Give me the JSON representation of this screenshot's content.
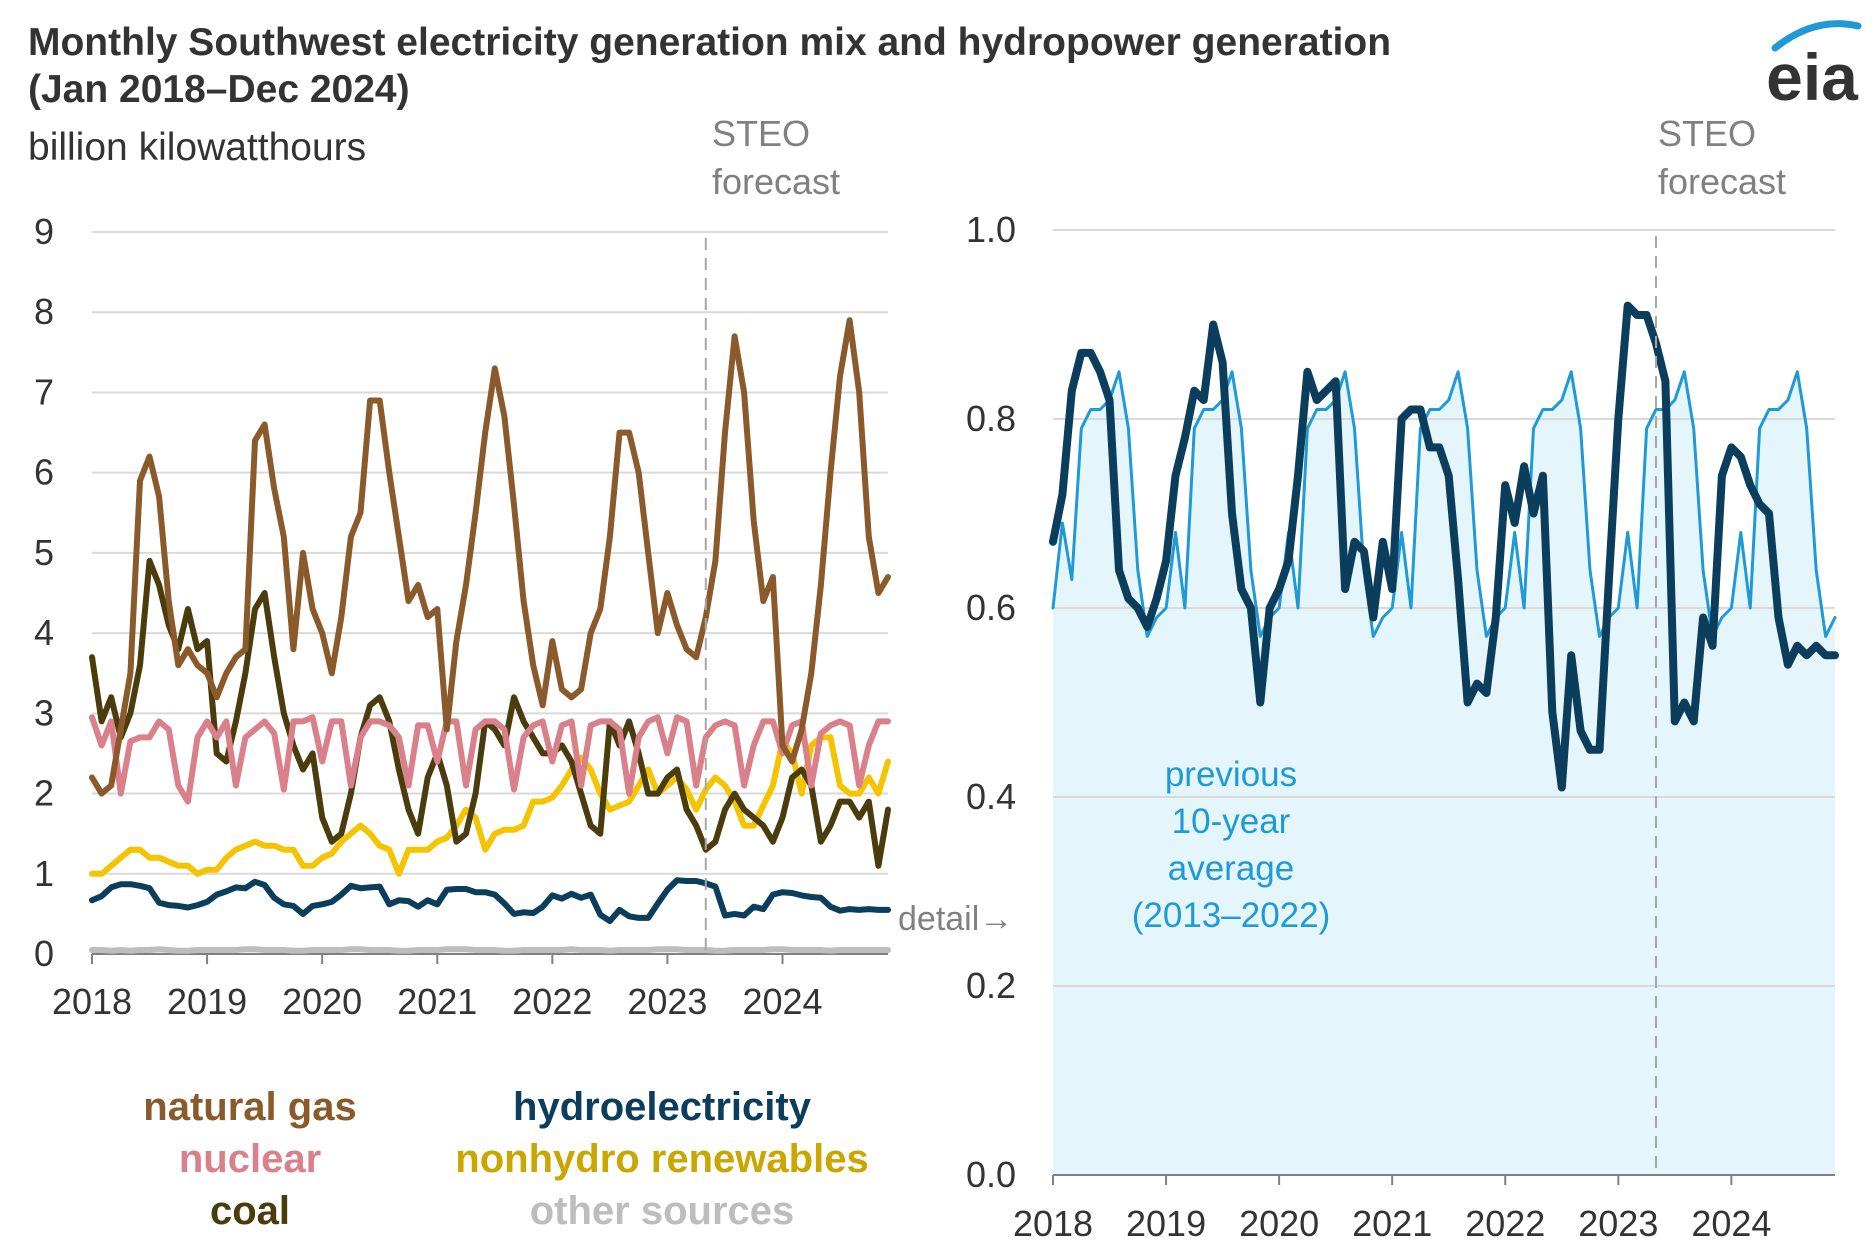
{
  "title_line1": "Monthly Southwest electricity generation mix and hydropower generation",
  "title_line2": "(Jan 2018–Dec 2024)",
  "units": "billion kilowatthours",
  "logo_text": "eia",
  "forecast_label_line1": "STEO",
  "forecast_label_line2": "forecast",
  "detail_label": "detail→",
  "avg_note_lines": [
    "previous",
    "10-year",
    "average",
    "(2013–2022)"
  ],
  "colors": {
    "natural_gas": "#8b5a2b",
    "nuclear": "#d9808b",
    "coal": "#4a3c0c",
    "hydro": "#0b3d5c",
    "nonhydro": "#f5c400",
    "nonhydro_label": "#c9a600",
    "other": "#bdbdbd",
    "avg_line": "#1f9ad6",
    "avg_fill": "#e4f5fc",
    "grid": "#d9d9d9",
    "forecast_line": "#a6a6a6"
  },
  "chart_data": [
    {
      "type": "line",
      "units": "billion kilowatthours",
      "x_start": "2018-01",
      "forecast_start": "2023-05",
      "xticks": [
        "2018",
        "2019",
        "2020",
        "2021",
        "2022",
        "2023",
        "2024"
      ],
      "ylim": [
        0,
        9
      ],
      "yticks": [
        0,
        1,
        2,
        3,
        4,
        5,
        6,
        7,
        8,
        9
      ],
      "grid": true,
      "legend_position": "bottom",
      "series": [
        {
          "name": "natural gas",
          "key": "natural_gas",
          "legend_row": 0,
          "legend_col": 0,
          "values": [
            2.2,
            2.0,
            2.1,
            2.8,
            3.5,
            5.9,
            6.2,
            5.7,
            4.4,
            3.6,
            3.8,
            3.6,
            3.5,
            3.2,
            3.5,
            3.7,
            3.8,
            6.4,
            6.6,
            5.8,
            5.2,
            3.8,
            5.0,
            4.3,
            4.0,
            3.5,
            4.2,
            5.2,
            5.5,
            6.9,
            6.9,
            6.0,
            5.2,
            4.4,
            4.6,
            4.2,
            4.3,
            2.8,
            3.9,
            4.6,
            5.5,
            6.5,
            7.3,
            6.7,
            5.6,
            4.4,
            3.6,
            3.1,
            3.9,
            3.3,
            3.2,
            3.3,
            4.0,
            4.3,
            5.2,
            6.5,
            6.5,
            6.0,
            5.0,
            4.0,
            4.5,
            4.1,
            3.8,
            3.7,
            4.2,
            4.9,
            6.5,
            7.7,
            7.0,
            5.4,
            4.4,
            4.7,
            2.6,
            2.4,
            2.8,
            3.5,
            4.6,
            6.0,
            7.2,
            7.9,
            7.0,
            5.2,
            4.5,
            4.7
          ]
        },
        {
          "name": "nuclear",
          "key": "nuclear",
          "legend_row": 1,
          "legend_col": 0,
          "values": [
            2.95,
            2.6,
            2.9,
            2.0,
            2.65,
            2.7,
            2.7,
            2.9,
            2.8,
            2.1,
            1.9,
            2.7,
            2.9,
            2.7,
            2.9,
            2.1,
            2.7,
            2.8,
            2.9,
            2.75,
            2.05,
            2.9,
            2.9,
            2.95,
            2.4,
            2.9,
            2.9,
            2.1,
            2.7,
            2.9,
            2.9,
            2.85,
            2.7,
            2.1,
            2.85,
            2.85,
            2.4,
            2.9,
            2.9,
            2.1,
            2.8,
            2.9,
            2.9,
            2.8,
            2.05,
            2.7,
            2.85,
            2.9,
            2.4,
            2.85,
            2.9,
            2.1,
            2.85,
            2.9,
            2.9,
            2.8,
            2.0,
            2.7,
            2.9,
            2.95,
            2.5,
            2.95,
            2.9,
            2.1,
            2.7,
            2.85,
            2.9,
            2.85,
            2.1,
            2.6,
            2.9,
            2.9,
            2.5,
            2.85,
            2.9,
            2.1,
            2.75,
            2.85,
            2.9,
            2.85,
            2.1,
            2.6,
            2.9,
            2.9
          ]
        },
        {
          "name": "coal",
          "key": "coal",
          "legend_row": 2,
          "legend_col": 0,
          "values": [
            3.7,
            2.9,
            3.2,
            2.7,
            3.0,
            3.6,
            4.9,
            4.6,
            4.1,
            3.8,
            4.3,
            3.8,
            3.9,
            2.5,
            2.4,
            2.9,
            3.5,
            4.3,
            4.5,
            3.7,
            3.0,
            2.6,
            2.3,
            2.5,
            1.7,
            1.4,
            1.5,
            2.0,
            2.7,
            3.1,
            3.2,
            2.9,
            2.3,
            1.8,
            1.5,
            2.2,
            2.5,
            2.1,
            1.4,
            1.5,
            2.0,
            2.9,
            2.8,
            2.6,
            3.2,
            2.9,
            2.7,
            2.5,
            2.5,
            2.6,
            2.4,
            2.0,
            1.6,
            1.5,
            2.9,
            2.6,
            2.9,
            2.5,
            2.0,
            2.0,
            2.2,
            2.3,
            1.8,
            1.6,
            1.3,
            1.4,
            1.8,
            2.0,
            1.8,
            1.7,
            1.6,
            1.4,
            1.7,
            2.2,
            2.3,
            2.1,
            1.4,
            1.6,
            1.9,
            1.9,
            1.7,
            1.9,
            1.1,
            1.8
          ]
        },
        {
          "name": "hydroelectricity",
          "key": "hydro",
          "legend_row": 0,
          "legend_col": 1,
          "values": [
            0.67,
            0.72,
            0.83,
            0.87,
            0.87,
            0.85,
            0.82,
            0.64,
            0.61,
            0.6,
            0.58,
            0.61,
            0.65,
            0.74,
            0.78,
            0.83,
            0.82,
            0.9,
            0.86,
            0.7,
            0.62,
            0.6,
            0.5,
            0.6,
            0.62,
            0.65,
            0.74,
            0.85,
            0.82,
            0.83,
            0.84,
            0.62,
            0.67,
            0.66,
            0.59,
            0.67,
            0.62,
            0.8,
            0.81,
            0.81,
            0.77,
            0.77,
            0.74,
            0.63,
            0.5,
            0.52,
            0.51,
            0.59,
            0.73,
            0.69,
            0.75,
            0.7,
            0.74,
            0.49,
            0.41,
            0.55,
            0.47,
            0.45,
            0.45,
            0.63,
            0.8,
            0.92,
            0.91,
            0.91,
            0.88,
            0.84,
            0.48,
            0.5,
            0.48,
            0.59,
            0.56,
            0.74,
            0.77,
            0.76,
            0.73,
            0.71,
            0.7,
            0.59,
            0.54,
            0.56,
            0.55,
            0.56,
            0.55,
            0.55
          ]
        },
        {
          "name": "nonhydro renewables",
          "key": "nonhydro",
          "label_color_key": "nonhydro_label",
          "legend_row": 1,
          "legend_col": 1,
          "values": [
            1.0,
            1.0,
            1.1,
            1.2,
            1.3,
            1.3,
            1.2,
            1.2,
            1.15,
            1.1,
            1.1,
            1.0,
            1.05,
            1.05,
            1.2,
            1.3,
            1.35,
            1.4,
            1.35,
            1.35,
            1.3,
            1.3,
            1.1,
            1.1,
            1.2,
            1.25,
            1.4,
            1.5,
            1.6,
            1.5,
            1.35,
            1.3,
            1.0,
            1.3,
            1.3,
            1.3,
            1.4,
            1.45,
            1.6,
            1.8,
            1.7,
            1.3,
            1.5,
            1.55,
            1.55,
            1.6,
            1.9,
            1.9,
            1.95,
            2.1,
            2.3,
            2.45,
            2.3,
            2.0,
            1.8,
            1.85,
            1.9,
            2.1,
            2.3,
            2.0,
            2.1,
            2.2,
            2.05,
            1.8,
            2.05,
            2.2,
            2.1,
            1.9,
            1.6,
            1.6,
            1.85,
            2.1,
            2.65,
            2.5,
            2.0,
            2.6,
            2.7,
            2.7,
            2.1,
            2.0,
            2.0,
            2.2,
            2.0,
            2.4
          ]
        },
        {
          "name": "other sources",
          "key": "other",
          "legend_row": 2,
          "legend_col": 1,
          "values": [
            0.05,
            0.05,
            0.04,
            0.05,
            0.04,
            0.05,
            0.05,
            0.06,
            0.05,
            0.04,
            0.04,
            0.05,
            0.05,
            0.05,
            0.05,
            0.05,
            0.06,
            0.06,
            0.05,
            0.05,
            0.05,
            0.04,
            0.04,
            0.05,
            0.05,
            0.05,
            0.05,
            0.06,
            0.06,
            0.05,
            0.05,
            0.05,
            0.04,
            0.04,
            0.05,
            0.05,
            0.05,
            0.06,
            0.06,
            0.06,
            0.05,
            0.05,
            0.05,
            0.04,
            0.04,
            0.05,
            0.05,
            0.05,
            0.05,
            0.05,
            0.06,
            0.05,
            0.05,
            0.05,
            0.04,
            0.05,
            0.05,
            0.05,
            0.05,
            0.06,
            0.06,
            0.06,
            0.05,
            0.05,
            0.05,
            0.04,
            0.04,
            0.05,
            0.05,
            0.05,
            0.05,
            0.06,
            0.06,
            0.05,
            0.05,
            0.05,
            0.05,
            0.04,
            0.05,
            0.05,
            0.05,
            0.05,
            0.05,
            0.05
          ]
        }
      ]
    },
    {
      "type": "line",
      "units": "billion kilowatthours",
      "x_start": "2018-01",
      "forecast_start": "2023-05",
      "xticks": [
        "2018",
        "2019",
        "2020",
        "2021",
        "2022",
        "2023",
        "2024"
      ],
      "ylim": [
        0,
        1.0
      ],
      "yticks": [
        "0.0",
        "0.2",
        "0.4",
        "0.6",
        "0.8",
        "1.0"
      ],
      "grid": true,
      "series": [
        {
          "name": "previous 10-year average (2013–2022)",
          "key": "avg_line",
          "fill": "avg_fill",
          "values": [
            0.6,
            0.69,
            0.63,
            0.79,
            0.81,
            0.81,
            0.82,
            0.85,
            0.79,
            0.64,
            0.57,
            0.59,
            0.6,
            0.68,
            0.6,
            0.79,
            0.81,
            0.81,
            0.82,
            0.85,
            0.79,
            0.64,
            0.57,
            0.59,
            0.6,
            0.68,
            0.6,
            0.79,
            0.81,
            0.81,
            0.82,
            0.85,
            0.79,
            0.64,
            0.57,
            0.59,
            0.6,
            0.68,
            0.6,
            0.79,
            0.81,
            0.81,
            0.82,
            0.85,
            0.79,
            0.64,
            0.57,
            0.59,
            0.6,
            0.68,
            0.6,
            0.79,
            0.81,
            0.81,
            0.82,
            0.85,
            0.79,
            0.64,
            0.57,
            0.59,
            0.6,
            0.68,
            0.6,
            0.79,
            0.81,
            0.81,
            0.82,
            0.85,
            0.79,
            0.64,
            0.57,
            0.59,
            0.6,
            0.68,
            0.6,
            0.79,
            0.81,
            0.81,
            0.82,
            0.85,
            0.79,
            0.64,
            0.57,
            0.59
          ]
        },
        {
          "name": "hydroelectricity",
          "key": "hydro",
          "values": [
            0.67,
            0.72,
            0.83,
            0.87,
            0.87,
            0.85,
            0.82,
            0.64,
            0.61,
            0.6,
            0.58,
            0.61,
            0.65,
            0.74,
            0.78,
            0.83,
            0.82,
            0.9,
            0.86,
            0.7,
            0.62,
            0.6,
            0.5,
            0.6,
            0.62,
            0.65,
            0.74,
            0.85,
            0.82,
            0.83,
            0.84,
            0.62,
            0.67,
            0.66,
            0.59,
            0.67,
            0.62,
            0.8,
            0.81,
            0.81,
            0.77,
            0.77,
            0.74,
            0.63,
            0.5,
            0.52,
            0.51,
            0.59,
            0.73,
            0.69,
            0.75,
            0.7,
            0.74,
            0.49,
            0.41,
            0.55,
            0.47,
            0.45,
            0.45,
            0.63,
            0.8,
            0.92,
            0.91,
            0.91,
            0.88,
            0.84,
            0.48,
            0.5,
            0.48,
            0.59,
            0.56,
            0.74,
            0.77,
            0.76,
            0.73,
            0.71,
            0.7,
            0.59,
            0.54,
            0.56,
            0.55,
            0.56,
            0.55,
            0.55
          ]
        }
      ]
    }
  ]
}
